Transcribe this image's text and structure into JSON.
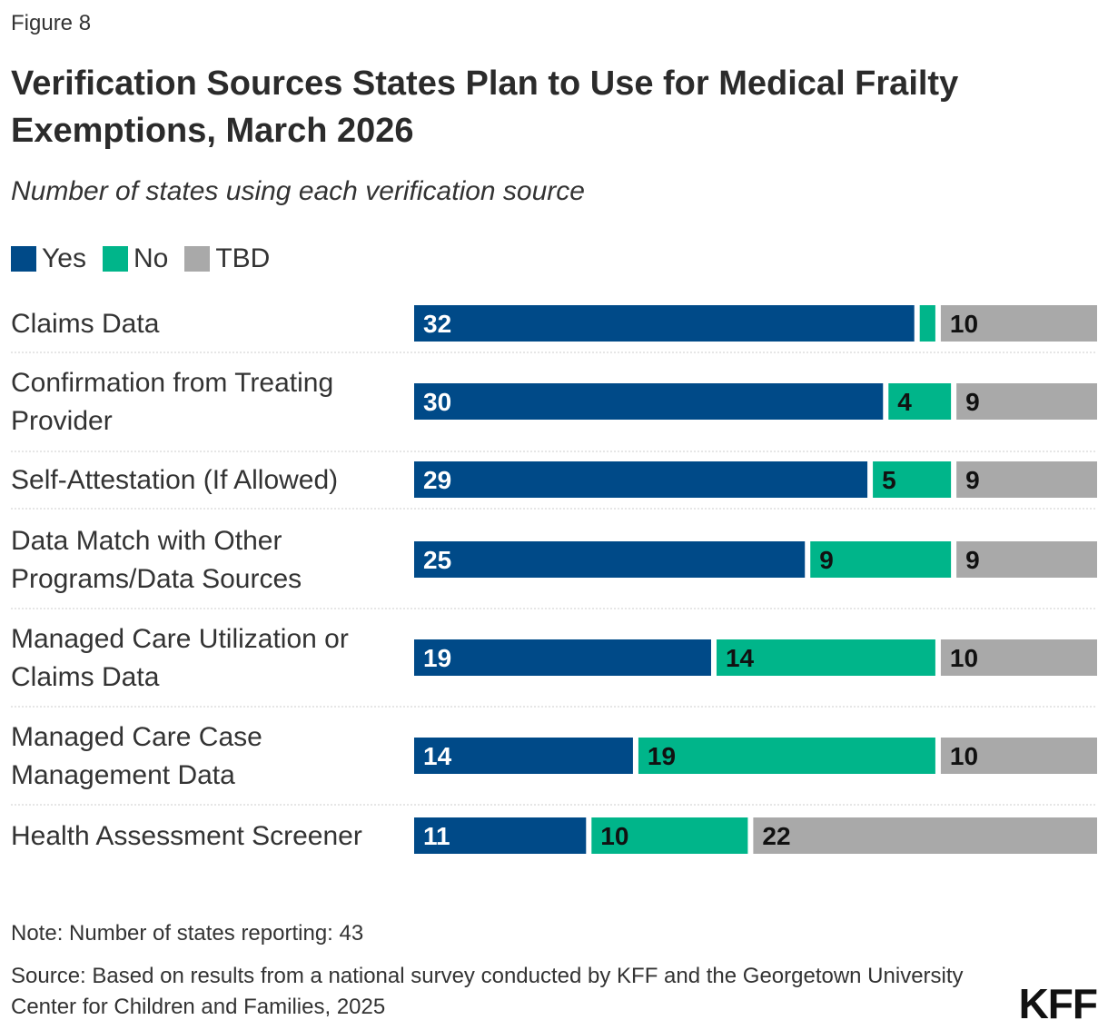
{
  "figure_label": "Figure 8",
  "logo_text": "KFF",
  "note": "Note: Number of states reporting: 43",
  "source": "Source: Based on results from a national survey conducted by KFF and the Georgetown University Center for Children and Families, 2025",
  "colors": {
    "yes": "#004a88",
    "no": "#00b58a",
    "tbd": "#a9a9a9"
  },
  "chart_data": {
    "type": "bar",
    "orientation": "horizontal",
    "stacked": true,
    "title": "Verification Sources States Plan to Use for Medical Frailty Exemptions, March 2026",
    "subtitle": "Number of states using each verification source",
    "legend_position": "top-left",
    "grid": false,
    "xlim": [
      0,
      43
    ],
    "categories": [
      "Claims Data",
      "Confirmation from Treating Provider",
      "Self-Attestation (If Allowed)",
      "Data Match with Other Programs/Data Sources",
      "Managed Care Utilization or Claims Data",
      "Managed Care Case Management Data",
      "Health Assessment Screener"
    ],
    "series": [
      {
        "name": "Yes",
        "values": [
          32,
          30,
          29,
          25,
          19,
          14,
          11
        ]
      },
      {
        "name": "No",
        "values": [
          1,
          4,
          5,
          9,
          14,
          19,
          10
        ]
      },
      {
        "name": "TBD",
        "values": [
          10,
          9,
          9,
          9,
          10,
          10,
          22
        ]
      }
    ],
    "data_labels": [
      [
        "32",
        "",
        "10"
      ],
      [
        "30",
        "4",
        "9"
      ],
      [
        "29",
        "5",
        "9"
      ],
      [
        "25",
        "9",
        "9"
      ],
      [
        "19",
        "14",
        "10"
      ],
      [
        "14",
        "19",
        "10"
      ],
      [
        "11",
        "10",
        "22"
      ]
    ]
  }
}
